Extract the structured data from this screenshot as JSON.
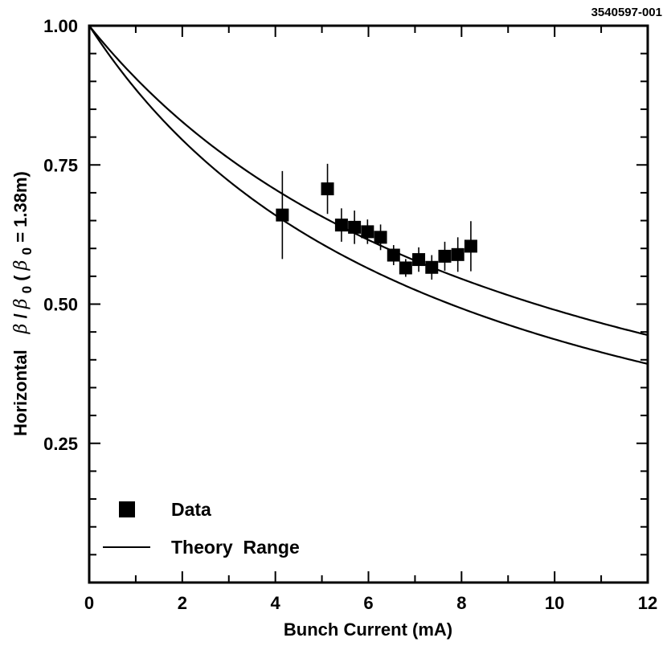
{
  "figure_id": "3540597-001",
  "chart_data": {
    "type": "scatter",
    "title": "",
    "xlabel": "Bunch  Current  (mA)",
    "ylabel": {
      "prefix": "Horizontal",
      "beta": "β",
      "slash": " / ",
      "beta0": "β",
      "sub0": "0",
      "paren_open": " (",
      "beta0_b": "β",
      "sub0_b": "0",
      "tail": " = 1.38m)"
    },
    "xlim": [
      0,
      12
    ],
    "ylim": [
      0,
      1.0
    ],
    "x_ticks": [
      0,
      2,
      4,
      6,
      8,
      10,
      12
    ],
    "x_tick_labels": [
      "0",
      "2",
      "4",
      "6",
      "8",
      "10",
      "12"
    ],
    "y_ticks": [
      0.25,
      0.5,
      0.75,
      1.0
    ],
    "y_tick_labels": [
      "0.25",
      "0.50",
      "0.75",
      "1.00"
    ],
    "series": [
      {
        "name": "Data",
        "kind": "points",
        "marker": "square",
        "points": [
          {
            "x": 4.15,
            "y": 0.66,
            "err": 0.079
          },
          {
            "x": 5.12,
            "y": 0.707,
            "err": 0.045
          },
          {
            "x": 5.42,
            "y": 0.642,
            "err": 0.03
          },
          {
            "x": 5.7,
            "y": 0.638,
            "err": 0.03
          },
          {
            "x": 5.98,
            "y": 0.63,
            "err": 0.022
          },
          {
            "x": 6.26,
            "y": 0.62,
            "err": 0.023
          },
          {
            "x": 6.54,
            "y": 0.588,
            "err": 0.018
          },
          {
            "x": 6.8,
            "y": 0.565,
            "err": 0.016
          },
          {
            "x": 7.08,
            "y": 0.58,
            "err": 0.022
          },
          {
            "x": 7.36,
            "y": 0.566,
            "err": 0.022
          },
          {
            "x": 7.64,
            "y": 0.586,
            "err": 0.026
          },
          {
            "x": 7.92,
            "y": 0.589,
            "err": 0.031
          },
          {
            "x": 8.2,
            "y": 0.604,
            "err": 0.045
          }
        ]
      },
      {
        "name": "Theory Range",
        "kind": "curve",
        "model": "y = 1 / (1 + a*x)",
        "upper_a": 0.1042,
        "lower_a": 0.1289,
        "x_range": [
          0,
          12
        ]
      }
    ],
    "legend": {
      "position": "bottom-left",
      "entries": [
        "Data",
        "Theory  Range"
      ]
    }
  }
}
